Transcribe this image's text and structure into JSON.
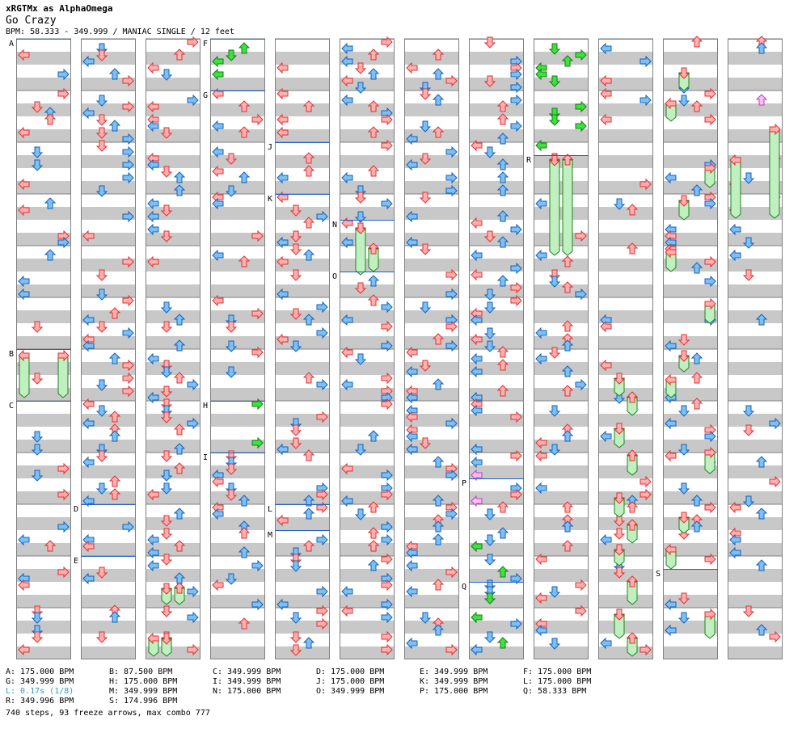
{
  "header": {
    "chart_title": "xRGTMx as AlphaOmega",
    "song_title": "Go Crazy",
    "bpm_line": "BPM: 58.333 - 349.999 / MANIAC SINGLE / 12 feet"
  },
  "chart": {
    "column_count": 12,
    "measures_per_column": 12,
    "colors": {
      "stripe": "#c8c8c8",
      "border": "#808080",
      "red_arrow": "#ffb0b0",
      "red_outline": "#e03030",
      "blue_arrow": "#80c0f0",
      "blue_outline": "#1060c0",
      "green_arrow": "#40e040",
      "green_outline": "#108010",
      "pink_arrow": "#ffc0f0",
      "pink_outline": "#c040c0",
      "freeze_fill": "#c0f0c0",
      "freeze_outline": "#208020",
      "marker_line": "#2060d0"
    },
    "markers": [
      {
        "label": "A",
        "col": 0,
        "beat": 0
      },
      {
        "label": "B",
        "col": 0,
        "beat": 24
      },
      {
        "label": "C",
        "col": 0,
        "beat": 28
      },
      {
        "label": "D",
        "col": 1,
        "beat": 36
      },
      {
        "label": "E",
        "col": 1,
        "beat": 40
      },
      {
        "label": "F",
        "col": 3,
        "beat": 0
      },
      {
        "label": "G",
        "col": 3,
        "beat": 4
      },
      {
        "label": "H",
        "col": 3,
        "beat": 28
      },
      {
        "label": "I",
        "col": 3,
        "beat": 32
      },
      {
        "label": "J",
        "col": 4,
        "beat": 8
      },
      {
        "label": "K",
        "col": 4,
        "beat": 12
      },
      {
        "label": "L",
        "col": 4,
        "beat": 36
      },
      {
        "label": "M",
        "col": 4,
        "beat": 38
      },
      {
        "label": "N",
        "col": 5,
        "beat": 14
      },
      {
        "label": "O",
        "col": 5,
        "beat": 18
      },
      {
        "label": "P",
        "col": 7,
        "beat": 34
      },
      {
        "label": "Q",
        "col": 7,
        "beat": 42
      },
      {
        "label": "R",
        "col": 8,
        "beat": 9
      },
      {
        "label": "S",
        "col": 10,
        "beat": 41
      }
    ]
  },
  "bpm_list": [
    {
      "text": "A: 175.000 BPM",
      "highlight": false
    },
    {
      "text": "B: 87.500 BPM",
      "highlight": false
    },
    {
      "text": "C: 349.999 BPM",
      "highlight": false
    },
    {
      "text": "D: 175.000 BPM",
      "highlight": false
    },
    {
      "text": "E: 349.999 BPM",
      "highlight": false
    },
    {
      "text": "F: 175.000 BPM",
      "highlight": false
    },
    {
      "text": "G: 349.999 BPM",
      "highlight": false
    },
    {
      "text": "H: 175.000 BPM",
      "highlight": false
    },
    {
      "text": "I: 349.999 BPM",
      "highlight": false
    },
    {
      "text": "J: 175.000 BPM",
      "highlight": false
    },
    {
      "text": "K: 349.999 BPM",
      "highlight": false
    },
    {
      "text": "L: 175.000 BPM",
      "highlight": false
    },
    {
      "text": "L: 0.17s (1/8)",
      "highlight": true
    },
    {
      "text": "M: 349.999 BPM",
      "highlight": false
    },
    {
      "text": "N: 175.000 BPM",
      "highlight": false
    },
    {
      "text": "O: 349.999 BPM",
      "highlight": false
    },
    {
      "text": "P: 175.000 BPM",
      "highlight": false
    },
    {
      "text": "Q: 58.333 BPM",
      "highlight": false
    },
    {
      "text": "R: 349.996 BPM",
      "highlight": false
    },
    {
      "text": "S: 174.996 BPM",
      "highlight": false
    }
  ],
  "stats": "740 steps, 93 freeze arrows, max combo 777"
}
